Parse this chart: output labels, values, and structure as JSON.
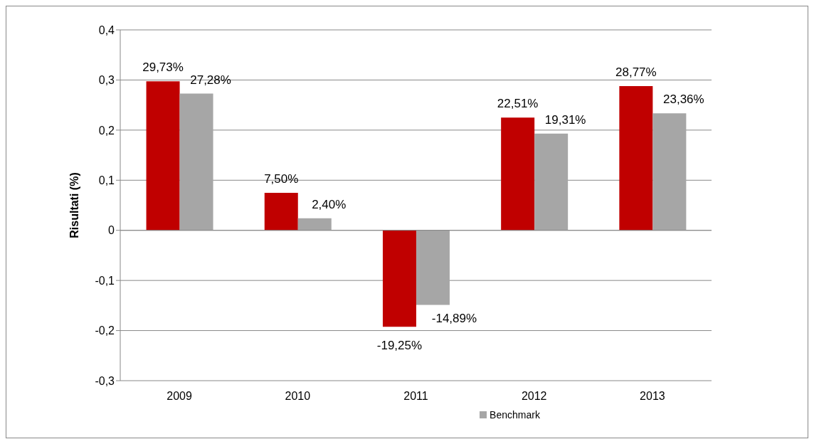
{
  "chart_data": {
    "type": "bar",
    "ylabel": "Risultati (%)",
    "categories": [
      "2009",
      "2010",
      "2011",
      "2012",
      "2013"
    ],
    "series": [
      {
        "color": "#c00000",
        "values": [
          0.2973,
          0.075,
          -0.1925,
          0.2251,
          0.2877
        ],
        "value_labels": [
          "29,73%",
          "7,50%",
          "-19,25%",
          "22,51%",
          "28,77%"
        ]
      },
      {
        "name": "Benchmark",
        "color": "#a6a6a6",
        "values": [
          0.2728,
          0.024,
          -0.1489,
          0.1931,
          0.2336
        ],
        "value_labels": [
          "27,28%",
          "2,40%",
          "-14,89%",
          "19,31%",
          "23,36%"
        ]
      }
    ],
    "ylim": [
      -0.3,
      0.4
    ],
    "yticks": [
      {
        "value": -0.3,
        "label": "-0,3"
      },
      {
        "value": -0.2,
        "label": "-0,2"
      },
      {
        "value": -0.1,
        "label": "-0,1"
      },
      {
        "value": 0,
        "label": "0"
      },
      {
        "value": 0.1,
        "label": "0,1"
      },
      {
        "value": 0.2,
        "label": "0,2"
      },
      {
        "value": 0.3,
        "label": "0,3"
      },
      {
        "value": 0.4,
        "label": "0,4"
      }
    ],
    "grid": "y",
    "legend": "bottom"
  }
}
